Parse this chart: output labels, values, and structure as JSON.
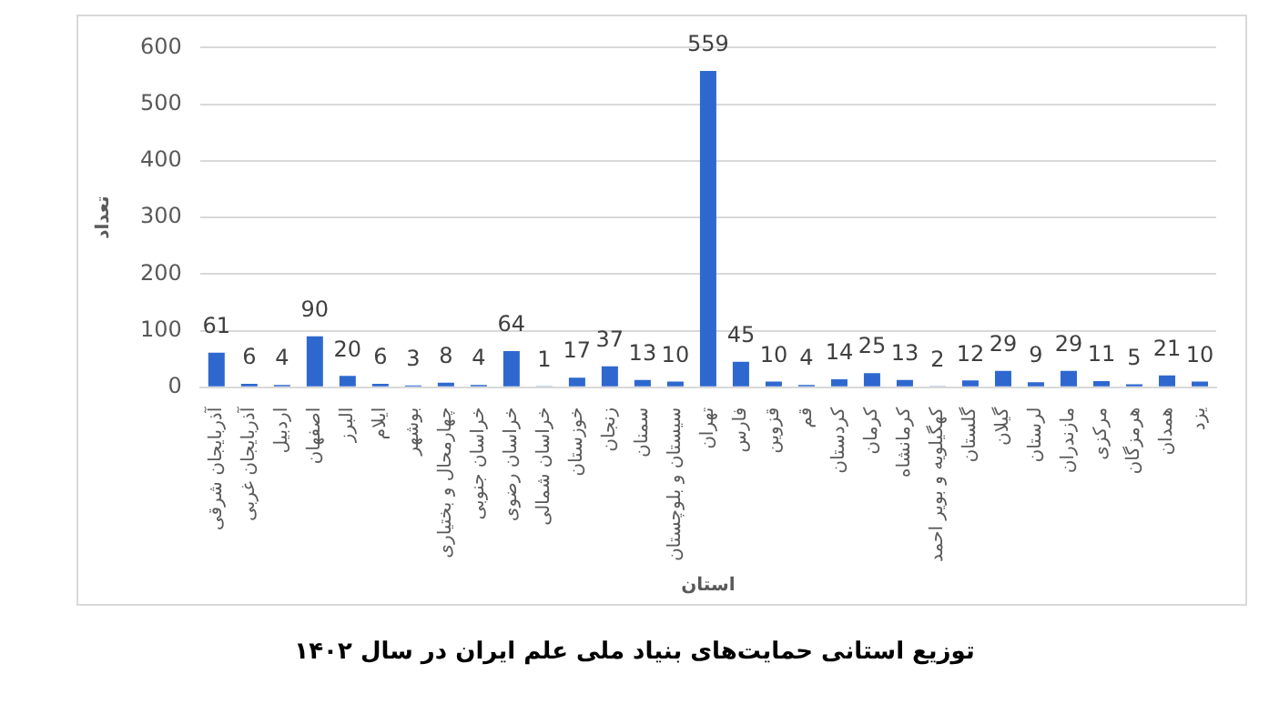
{
  "chart_data": {
    "type": "bar",
    "title": "توزیع استانی حمایت‌های بنیاد ملی علم ایران در سال ۱۴۰۲",
    "xlabel": "استان",
    "ylabel": "تعداد",
    "categories": [
      "آذربایجان شرقی",
      "آذربایجان غربی",
      "اردبیل",
      "اصفهان",
      "البرز",
      "ایلام",
      "بوشهر",
      "چهارمحال و بختیاری",
      "خراسان جنوبی",
      "خراسان رضوی",
      "خراسان شمالی",
      "خوزستان",
      "زنجان",
      "سمنان",
      "سیستان و بلوچستان",
      "تهران",
      "فارس",
      "قزوین",
      "قم",
      "کردستان",
      "کرمان",
      "کرمانشاه",
      "کهگیلویه و بویر احمد",
      "گلستان",
      "گیلان",
      "لرستان",
      "مازندران",
      "مرکزی",
      "هرمزگان",
      "همدان",
      "یزد"
    ],
    "series": [
      {
        "color": "#2e68cf",
        "values": [
          61,
          6,
          4,
          90,
          20,
          6,
          3,
          8,
          4,
          64,
          1,
          17,
          37,
          13,
          10,
          559,
          45,
          10,
          4,
          14,
          25,
          13,
          2,
          12,
          29,
          9,
          29,
          11,
          5,
          21,
          10
        ]
      }
    ],
    "ylim": [
      0,
      600
    ],
    "yticks": [
      0,
      100,
      200,
      300,
      400,
      500,
      600
    ],
    "grid": "y",
    "legend": false,
    "data_labels": true
  }
}
